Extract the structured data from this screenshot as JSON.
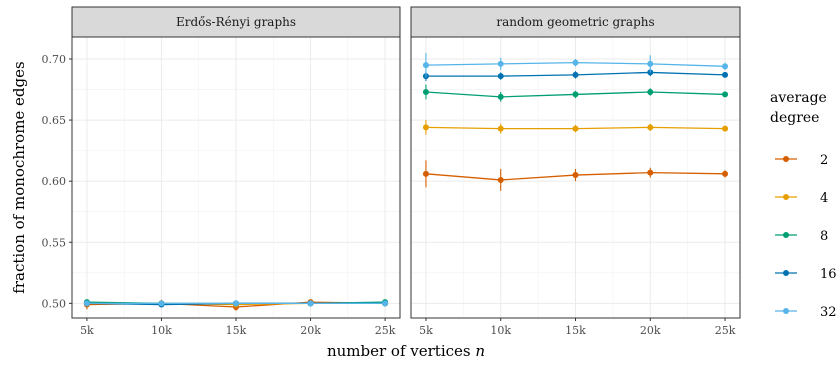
{
  "chart_data": {
    "type": "line",
    "x": [
      "5k",
      "10k",
      "15k",
      "20k",
      "25k"
    ],
    "x_values": [
      5000,
      10000,
      15000,
      20000,
      25000
    ],
    "ylim": [
      0.488,
      0.718
    ],
    "y_ticks": [
      "0.50",
      "0.55",
      "0.60",
      "0.65",
      "0.70"
    ],
    "xlabel": "number of vertices n",
    "ylabel": "fraction of monochrome edges",
    "legend_title": "average degree",
    "legend_position": "right",
    "grid": true,
    "panels": [
      {
        "title": "Erdős-Rényi graphs",
        "series": [
          {
            "name": "2",
            "color": "#D55E00",
            "values": [
              0.499,
              0.5,
              0.497,
              0.501,
              0.5
            ],
            "err": [
              0.004,
              0.003,
              0.003,
              0.002,
              0.002
            ]
          },
          {
            "name": "4",
            "color": "#E69F00",
            "values": [
              0.5,
              0.5,
              0.499,
              0.5,
              0.5
            ],
            "err": [
              0.002,
              0.002,
              0.002,
              0.002,
              0.002
            ]
          },
          {
            "name": "8",
            "color": "#009E73",
            "values": [
              0.501,
              0.5,
              0.5,
              0.5,
              0.501
            ],
            "err": [
              0.002,
              0.002,
              0.002,
              0.002,
              0.002
            ]
          },
          {
            "name": "16",
            "color": "#0072B2",
            "values": [
              0.5,
              0.499,
              0.5,
              0.5,
              0.5
            ],
            "err": [
              0.002,
              0.002,
              0.002,
              0.002,
              0.002
            ]
          },
          {
            "name": "32",
            "color": "#56B4E9",
            "values": [
              0.5,
              0.5,
              0.5,
              0.5,
              0.5
            ],
            "err": [
              0.002,
              0.002,
              0.002,
              0.002,
              0.002
            ]
          }
        ]
      },
      {
        "title": "random geometric graphs",
        "series": [
          {
            "name": "2",
            "color": "#D55E00",
            "values": [
              0.606,
              0.601,
              0.605,
              0.607,
              0.606
            ],
            "err": [
              0.011,
              0.009,
              0.005,
              0.004,
              0.003
            ]
          },
          {
            "name": "4",
            "color": "#E69F00",
            "values": [
              0.644,
              0.643,
              0.643,
              0.644,
              0.643
            ],
            "err": [
              0.006,
              0.004,
              0.003,
              0.003,
              0.002
            ]
          },
          {
            "name": "8",
            "color": "#009E73",
            "values": [
              0.673,
              0.669,
              0.671,
              0.673,
              0.671
            ],
            "err": [
              0.006,
              0.004,
              0.003,
              0.003,
              0.002
            ]
          },
          {
            "name": "16",
            "color": "#0072B2",
            "values": [
              0.686,
              0.686,
              0.687,
              0.689,
              0.687
            ],
            "err": [
              0.004,
              0.003,
              0.003,
              0.003,
              0.002
            ]
          },
          {
            "name": "32",
            "color": "#56B4E9",
            "values": [
              0.695,
              0.696,
              0.697,
              0.696,
              0.694
            ],
            "err": [
              0.01,
              0.005,
              0.003,
              0.007,
              0.003
            ]
          }
        ]
      }
    ]
  }
}
